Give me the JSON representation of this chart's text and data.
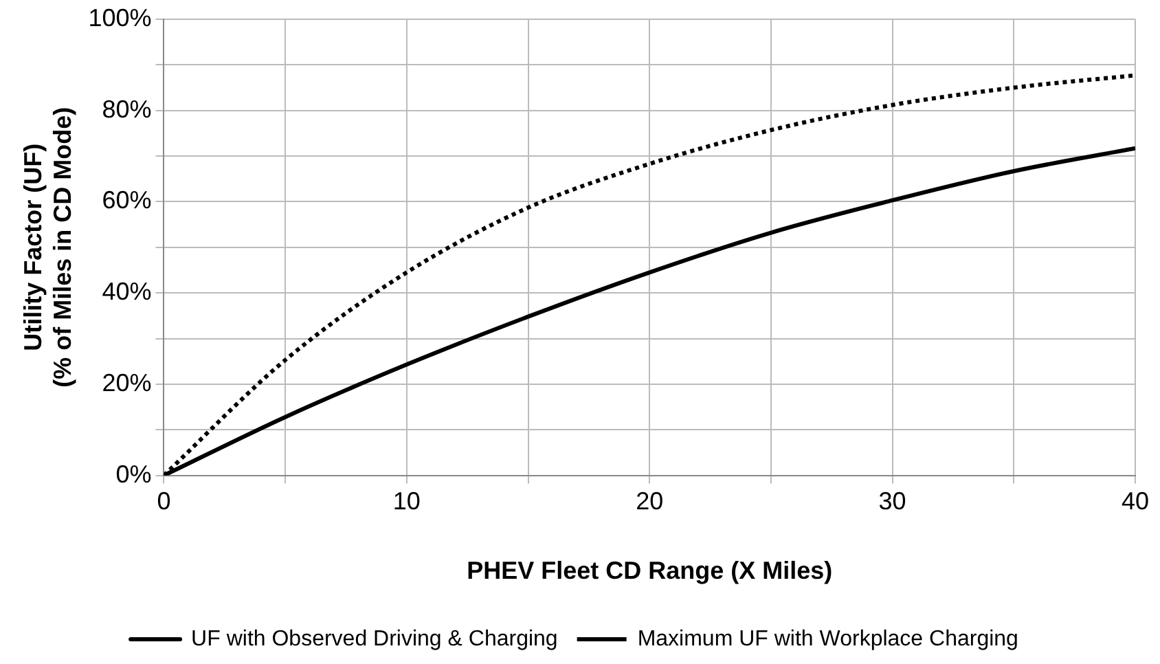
{
  "chart_data": {
    "type": "line",
    "xlabel": "PHEV Fleet CD Range (X Miles)",
    "ylabel": "Utility Factor (UF)\n(% of Miles in CD Mode)",
    "x": [
      0,
      5,
      10,
      15,
      20,
      25,
      30,
      35,
      40
    ],
    "series": [
      {
        "name": "UF with Observed Driving & Charging",
        "color": "#000000",
        "line_style": "solid",
        "values": [
          0,
          12.8,
          24.3,
          34.8,
          44.5,
          53.2,
          60.3,
          66.7,
          71.7
        ]
      },
      {
        "name": "Maximum UF with Workplace Charging",
        "color": "#000000",
        "line_style": "dotted",
        "values": [
          0,
          25.3,
          44.5,
          58.7,
          68.3,
          75.7,
          81.2,
          85,
          87.7
        ]
      }
    ],
    "xlim": [
      0,
      40
    ],
    "xticks": [
      0,
      {
        "value": 5,
        "label": null
      },
      10,
      {
        "value": 15,
        "label": null
      },
      20,
      {
        "value": 25,
        "label": null
      },
      30,
      {
        "value": 35,
        "label": null
      },
      40
    ],
    "ylim": [
      0,
      100
    ],
    "yticks": [
      {
        "value": 0,
        "label": "0%"
      },
      {
        "value": 10,
        "label": null
      },
      {
        "value": 20,
        "label": "20%"
      },
      {
        "value": 30,
        "label": null
      },
      {
        "value": 40,
        "label": "40%"
      },
      {
        "value": 50,
        "label": null
      },
      {
        "value": 60,
        "label": "60%"
      },
      {
        "value": 70,
        "label": null
      },
      {
        "value": 80,
        "label": "80%"
      },
      {
        "value": 90,
        "label": null
      },
      {
        "value": 100,
        "label": "100%"
      }
    ],
    "grid": true,
    "legend": "bottom",
    "marker": "none"
  }
}
